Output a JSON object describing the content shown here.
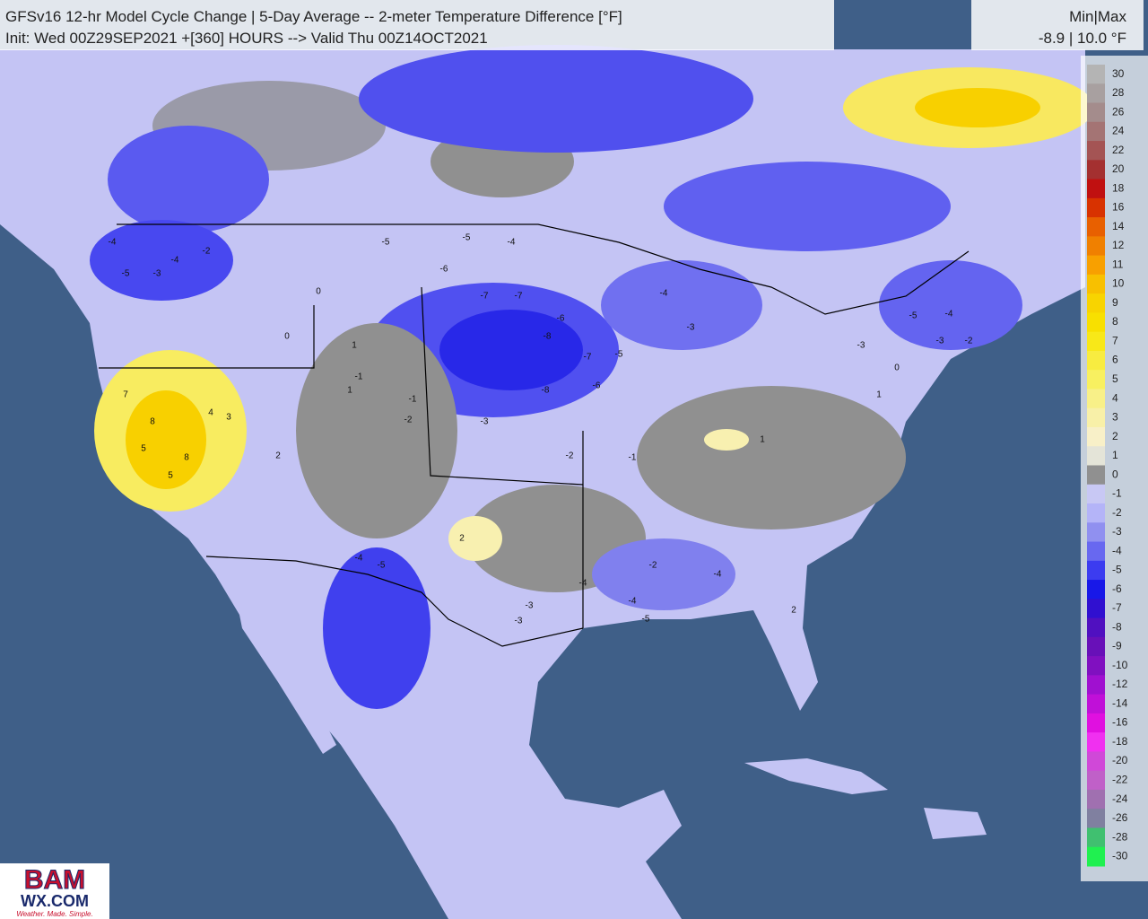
{
  "header": {
    "title": "GFSv16 12-hr Model Cycle Change | 5-Day Average -- 2-meter Temperature Difference [°F]",
    "subtitle": "Init: Wed 00Z29SEP2021 +[360] HOURS --> Valid Thu 00Z14OCT2021"
  },
  "minmax": {
    "label": "Min|Max",
    "value": "-8.9 | 10.0 °F"
  },
  "colorbar": {
    "ticks": [
      30,
      28,
      26,
      24,
      22,
      20,
      18,
      16,
      14,
      12,
      11,
      10,
      9,
      8,
      7,
      6,
      5,
      4,
      3,
      2,
      1,
      0,
      -1,
      -2,
      -3,
      -4,
      -5,
      -6,
      -7,
      -8,
      -9,
      -10,
      -12,
      -14,
      -16,
      -18,
      -20,
      -22,
      -24,
      -26,
      -28,
      -30
    ],
    "colors": [
      "#b4b4b4",
      "#a8a0a0",
      "#a48c8c",
      "#a47474",
      "#a45454",
      "#a43030",
      "#c01010",
      "#d83200",
      "#e86000",
      "#f08000",
      "#f8a000",
      "#f8c000",
      "#f8d400",
      "#f8e000",
      "#f8e818",
      "#f8ec40",
      "#f8f060",
      "#f8f088",
      "#f8f0a8",
      "#f8f0c8",
      "#e4e4d8",
      "#909090",
      "#c8c8f4",
      "#b4b4f8",
      "#9090f0",
      "#6868f0",
      "#3c3cf0",
      "#1818e8",
      "#3010d0",
      "#5010c0",
      "#6810b8",
      "#8010c0",
      "#a010d0",
      "#c010d8",
      "#e010e0",
      "#f030f0",
      "#d048d8",
      "#c060c8",
      "#a070b0",
      "#8080a0",
      "#40c070",
      "#20f050"
    ]
  },
  "map_labels": [
    -4,
    -5,
    -4,
    -2,
    -3,
    -5,
    -6,
    -5,
    -4,
    -7,
    -7,
    -6,
    -8,
    -8,
    -7,
    -6,
    -5,
    -4,
    -3,
    -5,
    -4,
    -3,
    -2,
    7,
    8,
    5,
    8,
    4,
    3,
    5,
    2,
    1,
    0,
    -1,
    0,
    1,
    -1,
    -2,
    -3,
    -2,
    -4,
    -5,
    -3,
    -4,
    -2,
    2,
    1,
    -1,
    -3,
    -4,
    -5,
    -4,
    -3,
    0,
    1,
    2
  ],
  "logo": {
    "top": "BAM",
    "middle": "WX.COM",
    "tagline": "Weather. Made. Simple."
  }
}
